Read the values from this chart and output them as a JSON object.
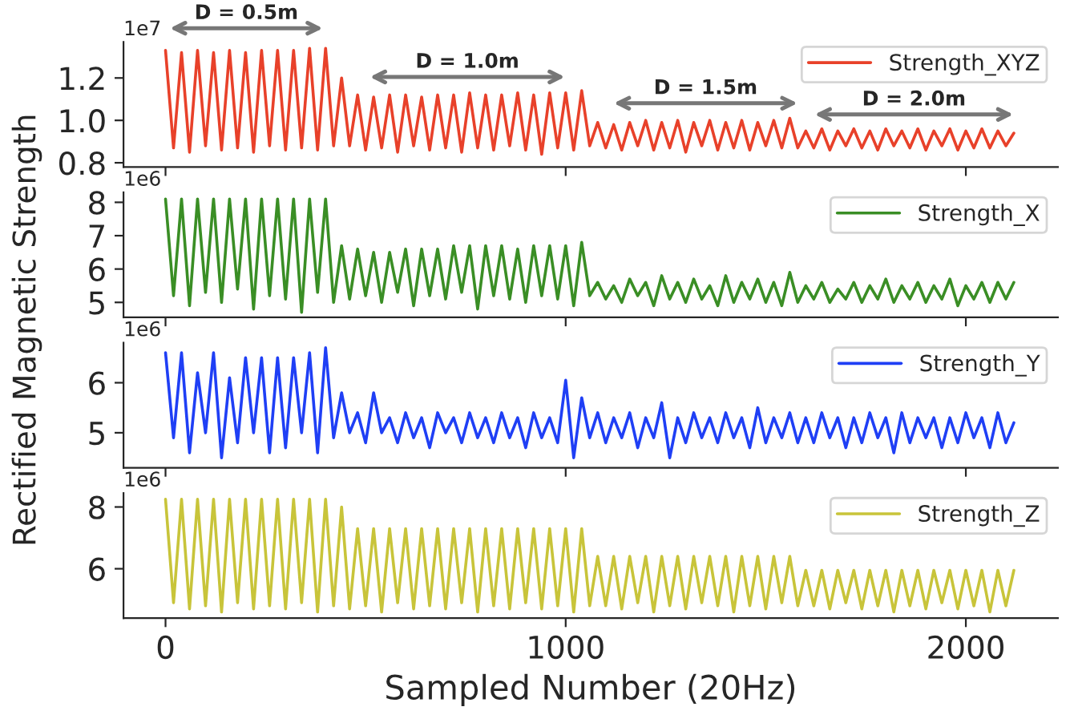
{
  "chart_data": [
    {
      "type": "line",
      "xlim": [
        -105,
        2230
      ],
      "xticks": [
        0,
        1000,
        2000
      ],
      "ylim": [
        0.78,
        1.37
      ],
      "yticks": [
        0.8,
        {
          "value": 1.0,
          "label": "1.0"
        },
        1.2
      ],
      "tick_labels": "y",
      "legend": "top right",
      "grid": false,
      "x": [
        0,
        20,
        40,
        60,
        80,
        100,
        120,
        140,
        160,
        180,
        200,
        220,
        240,
        260,
        280,
        300,
        320,
        340,
        360,
        380,
        400,
        420,
        440,
        460,
        480,
        500,
        520,
        540,
        560,
        580,
        600,
        620,
        640,
        660,
        680,
        700,
        720,
        740,
        760,
        780,
        800,
        820,
        840,
        860,
        880,
        900,
        920,
        940,
        960,
        980,
        1000,
        1020,
        1040,
        1060,
        1080,
        1100,
        1120,
        1140,
        1160,
        1180,
        1200,
        1220,
        1240,
        1260,
        1280,
        1300,
        1320,
        1340,
        1360,
        1380,
        1400,
        1420,
        1440,
        1460,
        1480,
        1500,
        1520,
        1540,
        1560,
        1580,
        1600,
        1620,
        1640,
        1660,
        1680,
        1700,
        1720,
        1740,
        1760,
        1780,
        1800,
        1820,
        1840,
        1860,
        1880,
        1900,
        1920,
        1940,
        1960,
        1980,
        2000,
        2020,
        2040,
        2060,
        2080,
        2100,
        2120
      ],
      "series": [
        {
          "name": "Strength_XYZ",
          "color": "#e8412a",
          "values": [
            1.33,
            0.87,
            1.32,
            0.85,
            1.33,
            0.88,
            1.32,
            0.86,
            1.33,
            0.87,
            1.32,
            0.85,
            1.33,
            0.88,
            1.33,
            0.86,
            1.33,
            0.87,
            1.34,
            0.86,
            1.34,
            0.88,
            1.2,
            0.88,
            1.12,
            0.86,
            1.11,
            0.87,
            1.12,
            0.85,
            1.12,
            0.88,
            1.11,
            0.86,
            1.12,
            0.87,
            1.12,
            0.85,
            1.13,
            0.87,
            1.12,
            0.86,
            1.12,
            0.88,
            1.13,
            0.86,
            1.12,
            0.84,
            1.13,
            0.87,
            1.13,
            0.86,
            1.14,
            0.88,
            0.99,
            0.87,
            0.98,
            0.86,
            0.99,
            0.88,
            1.0,
            0.86,
            0.99,
            0.87,
            1.0,
            0.85,
            0.99,
            0.88,
            1.0,
            0.86,
            0.99,
            0.87,
            1.0,
            0.86,
            0.99,
            0.88,
            1.0,
            0.87,
            1.01,
            0.87,
            0.95,
            0.87,
            0.96,
            0.86,
            0.95,
            0.88,
            0.96,
            0.87,
            0.95,
            0.86,
            0.96,
            0.88,
            0.95,
            0.87,
            0.96,
            0.86,
            0.95,
            0.88,
            0.96,
            0.86,
            0.95,
            0.87,
            0.96,
            0.87,
            0.95,
            0.88,
            0.94
          ]
        }
      ],
      "annotations": [
        "1e7",
        "D = 0.5m",
        "D = 1.0m",
        "D = 1.5m",
        "D = 2.0m"
      ]
    },
    {
      "type": "line",
      "xlim": [
        -105,
        2230
      ],
      "xticks": [
        0,
        1000,
        2000
      ],
      "ylim": [
        4.55,
        8.3
      ],
      "yticks": [
        5,
        6,
        7,
        8
      ],
      "tick_labels": "y",
      "legend": "top right",
      "grid": false,
      "ylabel": "Rectified Magnetic Strength",
      "x": [
        0,
        20,
        40,
        60,
        80,
        100,
        120,
        140,
        160,
        180,
        200,
        220,
        240,
        260,
        280,
        300,
        320,
        340,
        360,
        380,
        400,
        420,
        440,
        460,
        480,
        500,
        520,
        540,
        560,
        580,
        600,
        620,
        640,
        660,
        680,
        700,
        720,
        740,
        760,
        780,
        800,
        820,
        840,
        860,
        880,
        900,
        920,
        940,
        960,
        980,
        1000,
        1020,
        1040,
        1060,
        1080,
        1100,
        1120,
        1140,
        1160,
        1180,
        1200,
        1220,
        1240,
        1260,
        1280,
        1300,
        1320,
        1340,
        1360,
        1380,
        1400,
        1420,
        1440,
        1460,
        1480,
        1500,
        1520,
        1540,
        1560,
        1580,
        1600,
        1620,
        1640,
        1660,
        1680,
        1700,
        1720,
        1740,
        1760,
        1780,
        1800,
        1820,
        1840,
        1860,
        1880,
        1900,
        1920,
        1940,
        1960,
        1980,
        2000,
        2020,
        2040,
        2060,
        2080,
        2100,
        2120
      ],
      "series": [
        {
          "name": "Strength_X",
          "color": "#3a8e25",
          "values": [
            8.1,
            5.2,
            8.1,
            4.9,
            8.1,
            5.3,
            8.1,
            5.0,
            8.1,
            5.4,
            8.1,
            4.8,
            8.1,
            5.2,
            8.1,
            5.1,
            8.1,
            4.7,
            8.1,
            5.3,
            8.1,
            5.0,
            6.7,
            5.1,
            6.6,
            5.2,
            6.5,
            5.0,
            6.5,
            5.3,
            6.6,
            4.9,
            6.6,
            5.2,
            6.6,
            5.1,
            6.7,
            5.3,
            6.7,
            4.8,
            6.7,
            5.2,
            6.7,
            5.1,
            6.6,
            5.0,
            6.7,
            5.2,
            6.7,
            5.1,
            6.7,
            4.9,
            6.8,
            5.2,
            5.6,
            5.1,
            5.5,
            5.0,
            5.7,
            5.2,
            5.6,
            4.9,
            5.8,
            5.1,
            5.6,
            5.0,
            5.7,
            5.1,
            5.5,
            4.9,
            5.8,
            5.0,
            5.6,
            5.1,
            5.7,
            5.0,
            5.6,
            4.9,
            5.9,
            5.0,
            5.5,
            5.1,
            5.6,
            5.0,
            5.4,
            5.1,
            5.6,
            5.0,
            5.5,
            5.1,
            5.7,
            5.0,
            5.5,
            5.1,
            5.6,
            5.0,
            5.5,
            5.1,
            5.7,
            4.9,
            5.5,
            5.1,
            5.6,
            5.0,
            5.6,
            5.1,
            5.6
          ]
        }
      ],
      "annotations": [
        "1e6"
      ]
    },
    {
      "type": "line",
      "xlim": [
        -105,
        2230
      ],
      "xticks": [
        0,
        1000,
        2000
      ],
      "ylim": [
        4.3,
        6.8
      ],
      "yticks": [
        5,
        6
      ],
      "tick_labels": "y",
      "legend": "top right",
      "grid": false,
      "x": [
        0,
        20,
        40,
        60,
        80,
        100,
        120,
        140,
        160,
        180,
        200,
        220,
        240,
        260,
        280,
        300,
        320,
        340,
        360,
        380,
        400,
        420,
        440,
        460,
        480,
        500,
        520,
        540,
        560,
        580,
        600,
        620,
        640,
        660,
        680,
        700,
        720,
        740,
        760,
        780,
        800,
        820,
        840,
        860,
        880,
        900,
        920,
        940,
        960,
        980,
        1000,
        1020,
        1040,
        1060,
        1080,
        1100,
        1120,
        1140,
        1160,
        1180,
        1200,
        1220,
        1240,
        1260,
        1280,
        1300,
        1320,
        1340,
        1360,
        1380,
        1400,
        1420,
        1440,
        1460,
        1480,
        1500,
        1520,
        1540,
        1560,
        1580,
        1600,
        1620,
        1640,
        1660,
        1680,
        1700,
        1720,
        1740,
        1760,
        1780,
        1800,
        1820,
        1840,
        1860,
        1880,
        1900,
        1920,
        1940,
        1960,
        1980,
        2000,
        2020,
        2040,
        2060,
        2080,
        2100,
        2120
      ],
      "series": [
        {
          "name": "Strength_Y",
          "color": "#1f3ff5",
          "values": [
            6.6,
            4.9,
            6.6,
            4.6,
            6.2,
            5.0,
            6.6,
            4.5,
            6.1,
            4.8,
            6.5,
            5.0,
            6.5,
            4.6,
            6.5,
            4.7,
            6.5,
            5.0,
            6.6,
            4.6,
            6.7,
            4.9,
            5.8,
            5.0,
            5.4,
            4.8,
            5.8,
            5.0,
            5.3,
            4.8,
            5.4,
            4.9,
            5.3,
            4.7,
            5.4,
            5.0,
            5.3,
            4.8,
            5.4,
            4.9,
            5.3,
            4.8,
            5.4,
            4.9,
            5.3,
            4.7,
            5.4,
            4.9,
            5.3,
            4.8,
            6.05,
            4.5,
            5.7,
            4.9,
            5.4,
            4.8,
            5.3,
            4.9,
            5.4,
            4.7,
            5.3,
            4.9,
            5.6,
            4.5,
            5.3,
            4.8,
            5.4,
            4.9,
            5.3,
            4.8,
            5.4,
            4.9,
            5.3,
            4.7,
            5.5,
            4.8,
            5.3,
            4.9,
            5.4,
            4.8,
            5.3,
            4.8,
            5.4,
            4.9,
            5.3,
            4.7,
            5.3,
            4.8,
            5.4,
            4.9,
            5.3,
            4.6,
            5.4,
            4.8,
            5.3,
            4.9,
            5.3,
            4.7,
            5.3,
            4.8,
            5.4,
            4.9,
            5.3,
            4.7,
            5.4,
            4.8,
            5.2
          ]
        }
      ],
      "annotations": [
        "1e6"
      ]
    },
    {
      "type": "line",
      "xlim": [
        -105,
        2230
      ],
      "xticks": [
        0,
        1000,
        2000
      ],
      "ylim": [
        4.4,
        8.45
      ],
      "yticks": [
        6,
        8
      ],
      "legend": "top right",
      "grid": false,
      "xlabel": "Sampled Number (20Hz)",
      "x": [
        0,
        20,
        40,
        60,
        80,
        100,
        120,
        140,
        160,
        180,
        200,
        220,
        240,
        260,
        280,
        300,
        320,
        340,
        360,
        380,
        400,
        420,
        440,
        460,
        480,
        500,
        520,
        540,
        560,
        580,
        600,
        620,
        640,
        660,
        680,
        700,
        720,
        740,
        760,
        780,
        800,
        820,
        840,
        860,
        880,
        900,
        920,
        940,
        960,
        980,
        1000,
        1020,
        1040,
        1060,
        1080,
        1100,
        1120,
        1140,
        1160,
        1180,
        1200,
        1220,
        1240,
        1260,
        1280,
        1300,
        1320,
        1340,
        1360,
        1380,
        1400,
        1420,
        1440,
        1460,
        1480,
        1500,
        1520,
        1540,
        1560,
        1580,
        1600,
        1620,
        1640,
        1660,
        1680,
        1700,
        1720,
        1740,
        1760,
        1780,
        1800,
        1820,
        1840,
        1860,
        1880,
        1900,
        1920,
        1940,
        1960,
        1980,
        2000,
        2020,
        2040,
        2060,
        2080,
        2100,
        2120
      ],
      "series": [
        {
          "name": "Strength_Z",
          "color": "#c8c43a",
          "values": [
            8.25,
            4.9,
            8.25,
            4.7,
            8.25,
            4.8,
            8.25,
            4.6,
            8.25,
            4.9,
            8.25,
            4.7,
            8.25,
            4.8,
            8.25,
            4.7,
            8.25,
            4.9,
            8.25,
            4.6,
            8.25,
            4.8,
            8.0,
            4.7,
            7.3,
            4.8,
            7.3,
            4.6,
            7.3,
            4.9,
            7.3,
            4.7,
            7.3,
            4.8,
            7.3,
            4.7,
            7.3,
            4.9,
            7.3,
            4.6,
            7.3,
            4.8,
            7.3,
            4.7,
            7.3,
            4.9,
            7.3,
            4.7,
            7.3,
            4.8,
            7.3,
            4.6,
            7.3,
            4.8,
            6.4,
            4.8,
            6.4,
            4.7,
            6.4,
            4.9,
            6.4,
            4.6,
            6.4,
            4.8,
            6.4,
            4.7,
            6.4,
            4.9,
            6.4,
            4.8,
            6.4,
            4.6,
            6.4,
            4.8,
            6.4,
            4.7,
            6.4,
            4.9,
            6.4,
            4.8,
            5.95,
            4.8,
            5.95,
            4.7,
            5.95,
            4.9,
            5.95,
            4.7,
            5.95,
            4.8,
            5.95,
            4.6,
            5.95,
            4.8,
            5.95,
            4.7,
            5.95,
            4.9,
            5.95,
            4.7,
            5.95,
            4.8,
            5.95,
            4.6,
            5.95,
            4.8,
            5.95
          ]
        }
      ],
      "annotations": [
        "1e6"
      ]
    }
  ]
}
